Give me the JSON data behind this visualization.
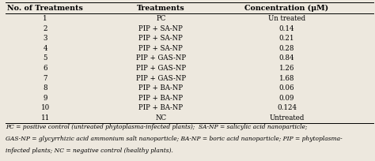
{
  "col_headers": [
    "No. of Treatments",
    "Treatments",
    "Concentration (μM)"
  ],
  "rows": [
    [
      "1",
      "PC",
      "Un treated"
    ],
    [
      "2",
      "PIP + SA-NP",
      "0.14"
    ],
    [
      "3",
      "PIP + SA-NP",
      "0.21"
    ],
    [
      "4",
      "PIP + SA-NP",
      "0.28"
    ],
    [
      "5",
      "PIP + GAS-NP",
      "0.84"
    ],
    [
      "6",
      "PIP + GAS-NP",
      "1.26"
    ],
    [
      "7",
      "PIP + GAS-NP",
      "1.68"
    ],
    [
      "8",
      "PIP + BA-NP",
      "0.06"
    ],
    [
      "9",
      "PIP + BA-NP",
      "0.09"
    ],
    [
      "10",
      "PIP + BA-NP",
      "0.124"
    ],
    [
      "11",
      "NC",
      "Untreated"
    ]
  ],
  "footnote_lines": [
    "PC = positive control (untreated phytoplasma-infected plants);  SA-NP = salicylic acid nanoparticle;",
    "GAS-NP = glycyrrhizic acid ammonium salt nanoparticle; BA-NP = boric acid nanoparticle; PIP = phytoplasma-",
    "infected plants; NC = negative control (healthy plants)."
  ],
  "bg_color": "#ede8de",
  "header_fontsize": 6.8,
  "cell_fontsize": 6.2,
  "footnote_fontsize": 5.4
}
